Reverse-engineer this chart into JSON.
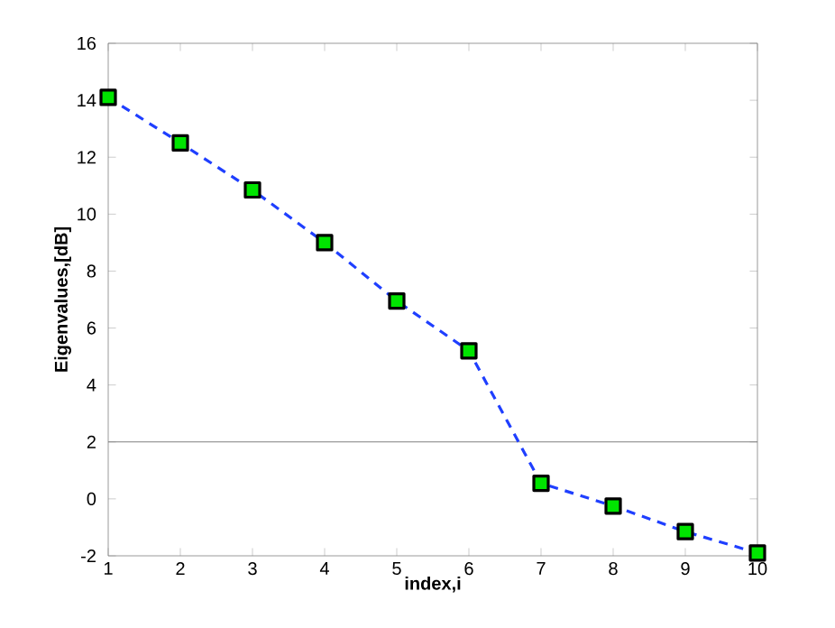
{
  "chart_data": {
    "type": "line",
    "xlabel": "index,i",
    "ylabel": "Eigenvalues,[dB]",
    "x": [
      1,
      2,
      3,
      4,
      5,
      6,
      7,
      8,
      9,
      10
    ],
    "series": [
      {
        "color": "#1f3fff",
        "values": [
          14.1,
          12.5,
          10.85,
          9.0,
          6.95,
          5.2,
          0.55,
          -0.25,
          -1.15,
          -1.9
        ]
      }
    ],
    "xlim": [
      1,
      10
    ],
    "xticks": [
      1,
      2,
      3,
      4,
      5,
      6,
      7,
      8,
      9,
      10
    ],
    "ylim": [
      -2,
      16
    ],
    "yticks": [
      -2,
      0,
      2,
      4,
      6,
      8,
      10,
      12,
      14,
      16
    ],
    "ref_lines": [
      {
        "axis": "y",
        "value": 2,
        "color": "#808080"
      }
    ],
    "marker": "square",
    "line_style": "dashed",
    "grid": false
  }
}
